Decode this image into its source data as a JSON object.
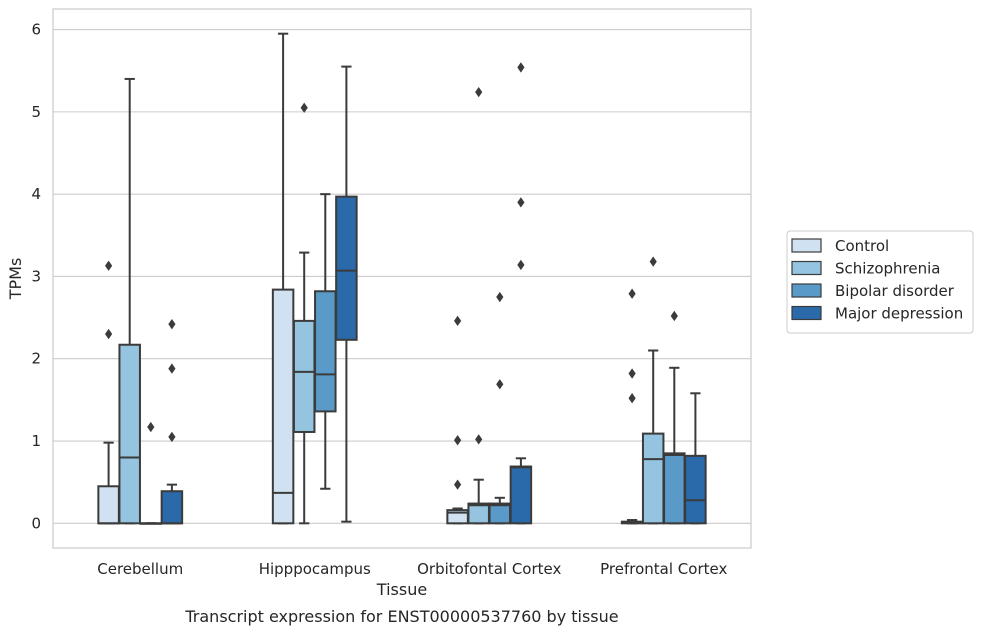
{
  "chart_data": {
    "type": "box",
    "caption": "Transcript expression for ENST00000537760 by tissue",
    "xlabel": "Tissue",
    "ylabel": "TPMs",
    "ylim": [
      -0.3,
      6.25
    ],
    "yticks": [
      0,
      1,
      2,
      3,
      4,
      5,
      6
    ],
    "grid": true,
    "legend_position": "right",
    "categories": [
      "Cerebellum",
      "Hipppocampus",
      "Orbitofontal Cortex",
      "Prefrontal Cortex"
    ],
    "series": [
      {
        "name": "Control",
        "color": "#d0e1f2",
        "boxes": [
          {
            "whislo": 0,
            "q1": 0,
            "med": 0,
            "q3": 0.45,
            "whishi": 0.98,
            "fliers": [
              3.13,
              2.3
            ]
          },
          {
            "whislo": 0,
            "q1": 0,
            "med": 0.37,
            "q3": 2.84,
            "whishi": 5.95,
            "fliers": []
          },
          {
            "whislo": 0,
            "q1": 0,
            "med": 0.13,
            "q3": 0.16,
            "whishi": 0.18,
            "fliers": [
              2.46,
              1.01,
              0.47
            ]
          },
          {
            "whislo": 0,
            "q1": 0,
            "med": 0.01,
            "q3": 0.02,
            "whishi": 0.04,
            "fliers": [
              2.79,
              1.82,
              1.52
            ]
          }
        ]
      },
      {
        "name": "Schizophrenia",
        "color": "#94c4df",
        "boxes": [
          {
            "whislo": 0,
            "q1": 0,
            "med": 0.8,
            "q3": 2.17,
            "whishi": 5.4,
            "fliers": []
          },
          {
            "whislo": 0,
            "q1": 1.11,
            "med": 1.84,
            "q3": 2.46,
            "whishi": 3.29,
            "fliers": [
              5.05
            ]
          },
          {
            "whislo": 0,
            "q1": 0,
            "med": 0.22,
            "q3": 0.24,
            "whishi": 0.53,
            "fliers": [
              5.24,
              1.02
            ]
          },
          {
            "whislo": 0,
            "q1": 0,
            "med": 0.78,
            "q3": 1.09,
            "whishi": 2.1,
            "fliers": [
              3.18
            ]
          }
        ]
      },
      {
        "name": "Bipolar disorder",
        "color": "#5a9ac8",
        "boxes": [
          {
            "whislo": 0,
            "q1": 0,
            "med": 0,
            "q3": 0,
            "whishi": 0,
            "fliers": [
              1.17
            ]
          },
          {
            "whislo": 0.42,
            "q1": 1.36,
            "med": 1.81,
            "q3": 2.82,
            "whishi": 4.0,
            "fliers": []
          },
          {
            "whislo": 0,
            "q1": 0,
            "med": 0.22,
            "q3": 0.24,
            "whishi": 0.31,
            "fliers": [
              2.75,
              1.69
            ]
          },
          {
            "whislo": 0,
            "q1": 0,
            "med": 0.83,
            "q3": 0.85,
            "whishi": 1.89,
            "fliers": [
              2.52
            ]
          }
        ]
      },
      {
        "name": "Major depression",
        "color": "#2a69aa",
        "boxes": [
          {
            "whislo": 0,
            "q1": 0,
            "med": 0,
            "q3": 0.39,
            "whishi": 0.47,
            "fliers": [
              2.42,
              1.88,
              1.05
            ]
          },
          {
            "whislo": 0.02,
            "q1": 2.23,
            "med": 3.07,
            "q3": 3.97,
            "whishi": 5.55,
            "fliers": []
          },
          {
            "whislo": 0,
            "q1": 0,
            "med": 0.68,
            "q3": 0.69,
            "whishi": 0.79,
            "fliers": [
              5.54,
              3.9,
              3.14
            ]
          },
          {
            "whislo": 0,
            "q1": 0,
            "med": 0.28,
            "q3": 0.82,
            "whishi": 1.58,
            "fliers": []
          }
        ]
      }
    ]
  }
}
